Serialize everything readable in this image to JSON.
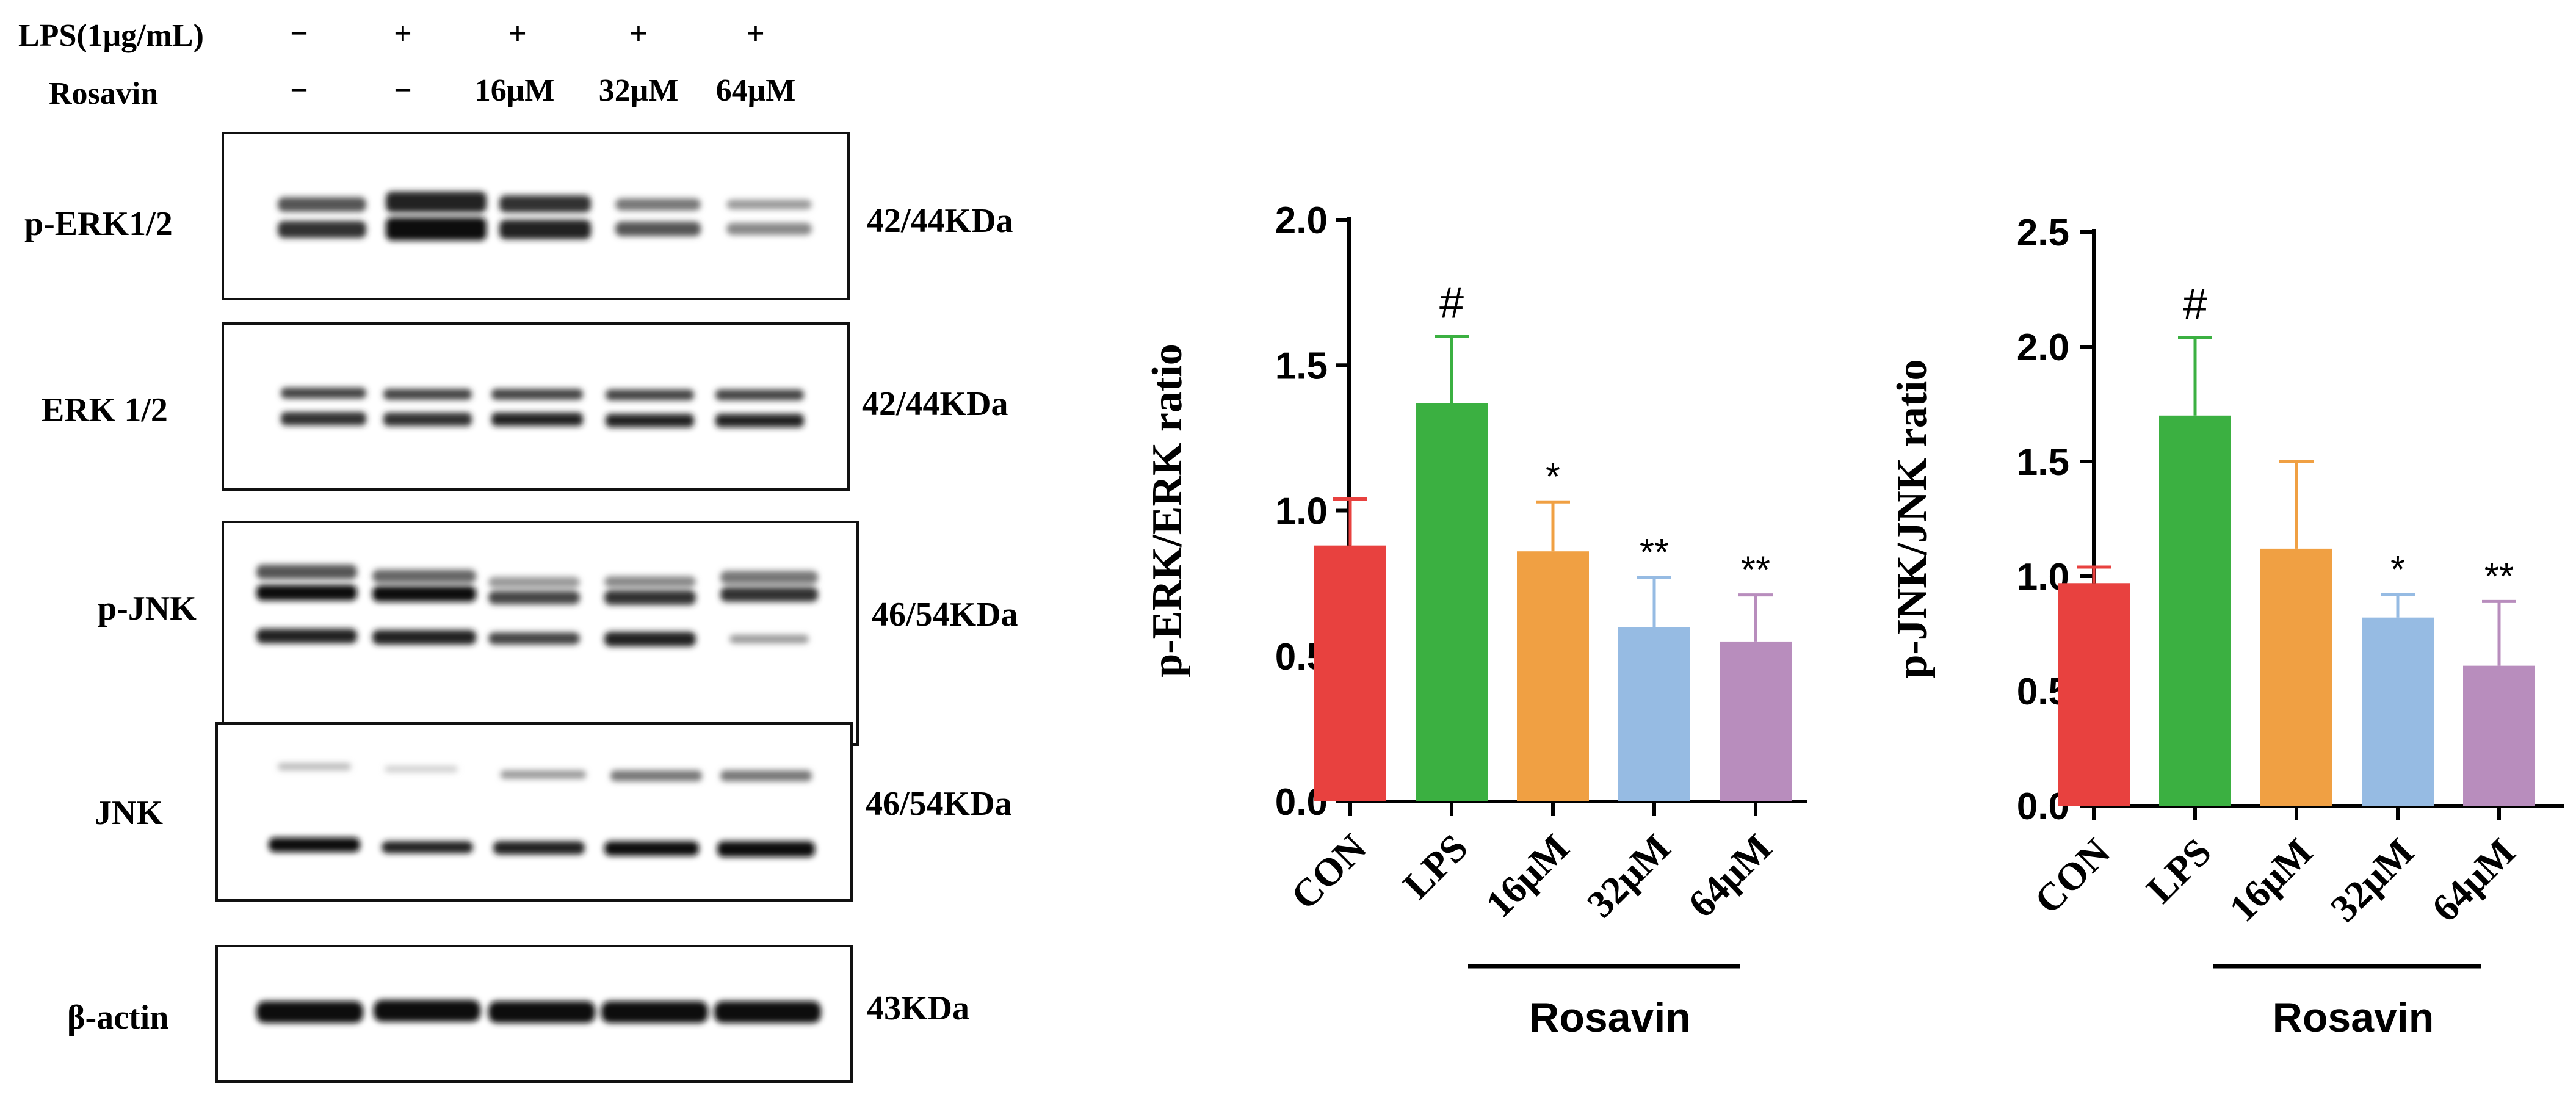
{
  "western_blot": {
    "treatment_rows": [
      {
        "label": "LPS(1μg/mL)",
        "values": [
          "−",
          "+",
          "+",
          "+",
          "+"
        ]
      },
      {
        "label": "Rosavin",
        "values": [
          "−",
          "−",
          "16μM",
          "32μM",
          "64μM"
        ]
      }
    ],
    "blots": [
      {
        "protein": "p-ERK1/2",
        "mw": "42/44KDa"
      },
      {
        "protein": "ERK 1/2",
        "mw": "42/44KDa"
      },
      {
        "protein": "p-JNK",
        "mw": "46/54KDa"
      },
      {
        "protein": "JNK",
        "mw": "46/54KDa"
      },
      {
        "protein": "β-actin",
        "mw": "43KDa"
      }
    ]
  },
  "colors": {
    "CON": "#e8413f",
    "LPS": "#3bb041",
    "16μM": "#f0a043",
    "32μM": "#96bbe3",
    "64μM": "#b88dbd"
  },
  "chart_data": [
    {
      "type": "bar",
      "title": "",
      "xlabel": "",
      "ylabel": "p-ERK/ERK ratio",
      "categories": [
        "CON",
        "LPS",
        "16μM",
        "32μM",
        "64μM"
      ],
      "values": [
        0.88,
        1.37,
        0.86,
        0.6,
        0.55
      ],
      "errors": [
        0.16,
        0.23,
        0.17,
        0.17,
        0.16
      ],
      "significance": [
        "",
        "#",
        "*",
        "**",
        "**"
      ],
      "ylim": [
        0,
        2.0
      ],
      "yticks": [
        "0.0",
        "0.5",
        "1.0",
        "1.5",
        "2.0"
      ],
      "group_label": "Rosavin",
      "grid": false
    },
    {
      "type": "bar",
      "title": "",
      "xlabel": "",
      "ylabel": "p-JNK/JNK ratio",
      "categories": [
        "CON",
        "LPS",
        "16μM",
        "32μM",
        "64μM"
      ],
      "values": [
        0.97,
        1.7,
        1.12,
        0.82,
        0.61
      ],
      "errors": [
        0.07,
        0.34,
        0.38,
        0.1,
        0.28
      ],
      "significance": [
        "",
        "#",
        "",
        "*",
        "**"
      ],
      "ylim": [
        0,
        2.5
      ],
      "yticks": [
        "0.0",
        "0.5",
        "1.0",
        "1.5",
        "2.0",
        "2.5"
      ],
      "group_label": "Rosavin",
      "grid": false
    }
  ]
}
